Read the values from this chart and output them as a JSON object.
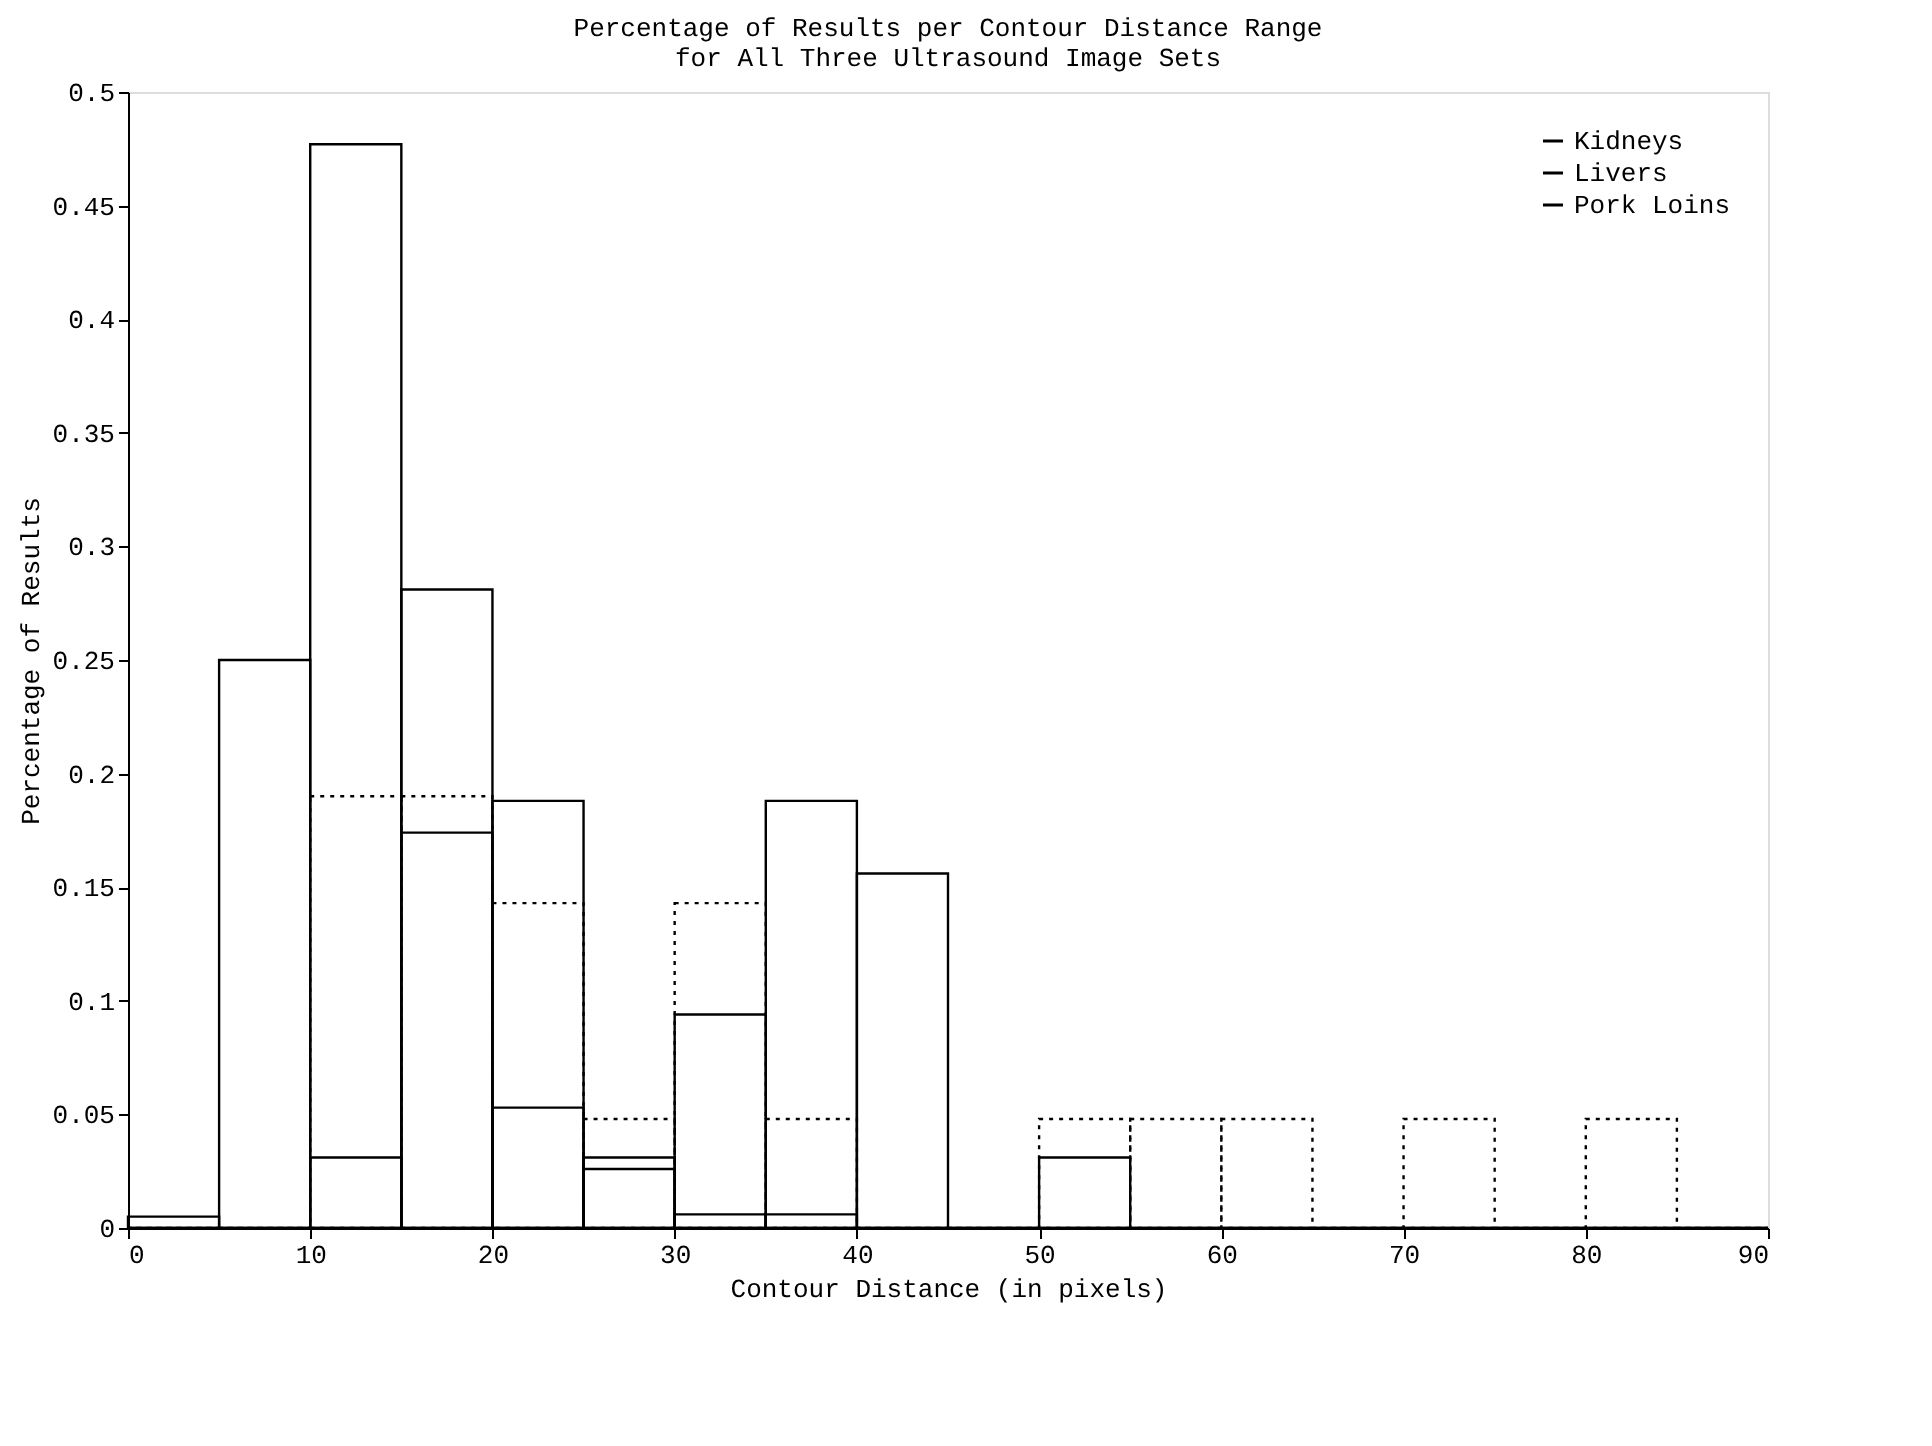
{
  "chart_data": {
    "type": "histogram",
    "title": "Percentage of Results per Contour Distance Range",
    "subtitle": "for All Three Ultrasound Image Sets",
    "xlabel": "Contour Distance (in pixels)",
    "ylabel": "Percentage of Results",
    "bins": [
      0,
      5,
      10,
      15,
      20,
      25,
      30,
      35,
      40,
      45,
      50,
      55,
      60,
      65,
      70,
      75,
      80,
      85,
      90
    ],
    "series": [
      {
        "name": "Kidneys",
        "color": "#000000",
        "values": [
          0,
          0,
          0.031,
          0.281,
          0.188,
          0.031,
          0.094,
          0.188,
          0.156,
          0,
          0.031,
          0,
          0,
          0,
          0,
          0,
          0,
          0
        ]
      },
      {
        "name": "Livers",
        "color": "#000000",
        "line_style": "dotted",
        "values": [
          0,
          0,
          0.19,
          0.19,
          0.143,
          0.048,
          0.143,
          0.048,
          0,
          0,
          0.048,
          0.048,
          0.048,
          0,
          0.048,
          0,
          0.048,
          0
        ]
      },
      {
        "name": "Pork Loins",
        "color": "#000000",
        "values": [
          0.005,
          0.25,
          0.477,
          0.174,
          0.053,
          0.026,
          0.006,
          0.006,
          0,
          0,
          0,
          0,
          0,
          0,
          0,
          0,
          0,
          0
        ]
      }
    ],
    "xlim": [
      0,
      90
    ],
    "xticks": [
      0,
      10,
      20,
      30,
      40,
      50,
      60,
      70,
      80,
      90
    ],
    "ylim": [
      0,
      0.5
    ],
    "yticks": [
      0,
      0.05,
      0.1,
      0.15,
      0.2,
      0.25,
      0.3,
      0.35,
      0.4,
      0.45,
      0.5
    ],
    "legend": "top right"
  }
}
